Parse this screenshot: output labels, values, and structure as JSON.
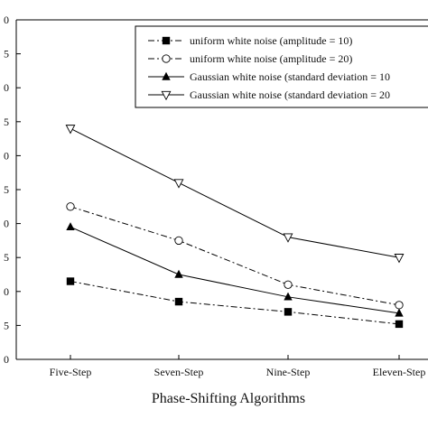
{
  "chart_data": {
    "type": "line",
    "xlabel": "Phase-Shifting Algorithms",
    "ylabel": "",
    "categories": [
      "Five-Step",
      "Seven-Step",
      "Nine-Step",
      "Eleven-Step"
    ],
    "y_tick_labels": [
      "0",
      "5",
      "0",
      "5",
      "0",
      "5",
      "0",
      "5",
      "0",
      "5",
      "0"
    ],
    "ylim": [
      0,
      5
    ],
    "grid": false,
    "legend_position": "top-right",
    "series": [
      {
        "name": "uniform white noise (amplitude = 10)",
        "values": [
          1.15,
          0.85,
          0.7,
          0.52
        ],
        "marker": "filled-square",
        "dash": "dash-dot"
      },
      {
        "name": "uniform white noise (amplitude = 20)",
        "values": [
          2.25,
          1.75,
          1.1,
          0.8
        ],
        "marker": "open-circle",
        "dash": "dash-dot"
      },
      {
        "name": "Gaussian white noise (standard deviation = 10",
        "values": [
          1.95,
          1.25,
          0.92,
          0.68
        ],
        "marker": "filled-triangle",
        "dash": "solid"
      },
      {
        "name": "Gaussian white noise (standard deviation = 20",
        "values": [
          3.4,
          2.6,
          1.8,
          1.5
        ],
        "marker": "open-triangle-down",
        "dash": "solid"
      }
    ]
  }
}
